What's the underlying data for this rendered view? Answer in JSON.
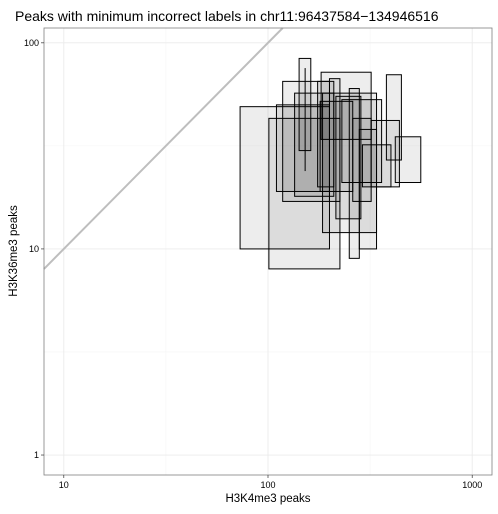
{
  "chart_data": {
    "type": "rect",
    "title": "Peaks with minimum incorrect labels in chr11:96437584−134946516",
    "xlabel": "H3K4me3 peaks",
    "ylabel": "H3K36me3 peaks",
    "x_scale": "log10",
    "y_scale": "log10",
    "xlim": [
      8,
      1250
    ],
    "ylim": [
      0.8,
      118
    ],
    "x_ticks": [
      {
        "value": 10,
        "label": "10"
      },
      {
        "value": 100,
        "label": "100"
      },
      {
        "value": 1000,
        "label": "1000"
      }
    ],
    "y_ticks": [
      {
        "value": 1,
        "label": "1"
      },
      {
        "value": 10,
        "label": "10"
      },
      {
        "value": 100,
        "label": "100"
      }
    ],
    "grid": true,
    "reference_line": {
      "type": "identity",
      "color": "#bebebe"
    },
    "rect_fill": "#000000",
    "rect_fill_opacity": 0.07,
    "rects": [
      {
        "xmin": 73,
        "xmax": 200,
        "ymin": 10,
        "ymax": 49
      },
      {
        "xmin": 101,
        "xmax": 225,
        "ymin": 8,
        "ymax": 43
      },
      {
        "xmin": 110,
        "xmax": 200,
        "ymin": 19,
        "ymax": 50
      },
      {
        "xmin": 118,
        "xmax": 200,
        "ymin": 17,
        "ymax": 65
      },
      {
        "xmin": 135,
        "xmax": 210,
        "ymin": 18,
        "ymax": 57
      },
      {
        "xmin": 142,
        "xmax": 162,
        "ymin": 30,
        "ymax": 84
      },
      {
        "xmin": 152,
        "xmax": 152,
        "ymin": 24,
        "ymax": 75
      },
      {
        "xmin": 175,
        "xmax": 210,
        "ymin": 20,
        "ymax": 65
      },
      {
        "xmin": 180,
        "xmax": 260,
        "ymin": 19,
        "ymax": 52
      },
      {
        "xmin": 182,
        "xmax": 320,
        "ymin": 34,
        "ymax": 72
      },
      {
        "xmin": 185,
        "xmax": 340,
        "ymin": 12,
        "ymax": 57
      },
      {
        "xmin": 200,
        "xmax": 225,
        "ymin": 17,
        "ymax": 67
      },
      {
        "xmin": 215,
        "xmax": 285,
        "ymin": 14,
        "ymax": 55
      },
      {
        "xmin": 230,
        "xmax": 360,
        "ymin": 21,
        "ymax": 53
      },
      {
        "xmin": 250,
        "xmax": 280,
        "ymin": 9,
        "ymax": 60
      },
      {
        "xmin": 260,
        "xmax": 320,
        "ymin": 17,
        "ymax": 43
      },
      {
        "xmin": 280,
        "xmax": 340,
        "ymin": 10,
        "ymax": 38
      },
      {
        "xmin": 290,
        "xmax": 400,
        "ymin": 20,
        "ymax": 32
      },
      {
        "xmin": 320,
        "xmax": 440,
        "ymin": 20,
        "ymax": 42
      },
      {
        "xmin": 380,
        "xmax": 450,
        "ymin": 27,
        "ymax": 70
      },
      {
        "xmin": 420,
        "xmax": 560,
        "ymin": 21,
        "ymax": 35
      }
    ]
  }
}
